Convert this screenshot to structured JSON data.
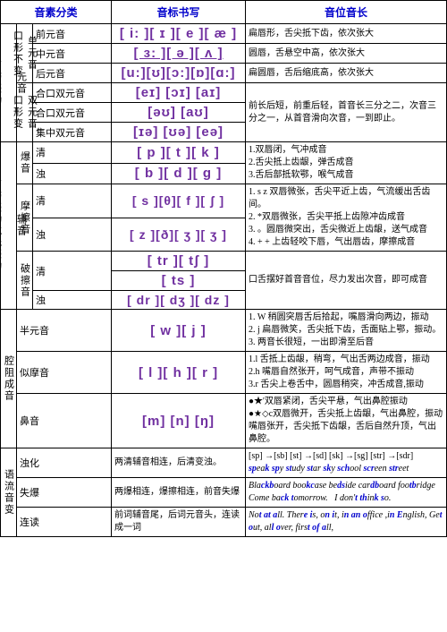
{
  "headers": {
    "h1": "音素分类",
    "h2": "音标书写",
    "h3": "音位音长"
  },
  "col1": {
    "yuan": "元音",
    "fu": "辅音",
    "qy": "腔阻成音",
    "liu": "语流音变",
    "shengdai1": "声带振动",
    "shengdai2": "声带振动或无振动"
  },
  "col2": {
    "dan": "单元音",
    "shuang": "双元音",
    "koubx": "口形不变",
    "koubian": "口形变",
    "bao": "爆音",
    "mo": "摩擦音",
    "pomo": "破擦音"
  },
  "vowels": {
    "qian": {
      "label": "前元音",
      "ipa": "[ i: ][ ɪ ][ e ][ æ ]",
      "desc": "扁唇形，舌尖抵下齿，依次张大"
    },
    "zhong": {
      "label": "中元音",
      "ipa": "[ ɜ: ][ ə  ][ ʌ ]",
      "desc": "圆唇，舌悬空中高，依次张大"
    },
    "hou": {
      "label": "后元音",
      "ipa": "[u:][ʊ][ɔ:][ɒ][ɑ:]",
      "desc": "扁圆唇，舌后缩底高，依次张大"
    },
    "hk1": {
      "label": "合口双元音",
      "ipa": "[eɪ] [ɔɪ] [aɪ]",
      "desc": "前长后短，前重后轻，首音长三分之二，次音三分之一，从首音滑向次音，一到即止。"
    },
    "hk2": {
      "label": "合口双元音",
      "ipa": "[əʊ] [aʊ]"
    },
    "jz": {
      "label": "集中双元音",
      "ipa": "[ɪə] [ʊə] [eə]"
    }
  },
  "cons": {
    "bao_q": {
      "label": "清",
      "ipa": "[ p ][ t ][ k ]",
      "desc": "1.双唇闭，气冲成音\n2.舌尖抵上齿龈，弹舌成音\n3.舌后部抵软鄂，喉气成音"
    },
    "bao_z": {
      "label": "浊",
      "ipa": "[ b ][ d ][ g ]"
    },
    "mo_q": {
      "label": "清",
      "ipa": "[ s ][θ][ f  ][ ʃ ]",
      "desc": "1. s z 双唇微张，舌尖平近上齿，气流缓出舌齿间。\n2.  *双唇微张，舌尖平抵上齿隙冲齿成音\n3. 。圆唇微突出，舌尖微近上齿龈，送气成音\n4. + + 上齿轻咬下唇，气出唇齿，摩擦成音"
    },
    "mo_z": {
      "label": "浊",
      "ipa": "[ z ][ð][ ʒ ][ ʒ ]"
    },
    "pm_q": {
      "label": "清",
      "ipa1": "[ tr   ][ tʃ   ]",
      "ipa2": "[ ts   ]",
      "desc": "口舌摆好首音音位，尽力发出次音，即可成音"
    },
    "pm_z": {
      "label": "浊",
      "ipa": "[ dr ][ dʒ ][ dz ]"
    }
  },
  "qiang": {
    "ban": {
      "label": "半元音",
      "ipa": "[ w ][ j ]",
      "desc": "1. W 稍圆突唇舌后拾起，嘴唇滑向两边，振动\n2. j 扁唇微笑，舌尖抵下齿，舌面贴上鄂，振动。\n3. 两音长很短，一出即滑至后音"
    },
    "simo": {
      "label": "似摩音",
      "ipa": "[ l ][ h ][ r ]",
      "desc": "1.l 舌抵上齿龈，稍弯，气出舌两边成音，振动\n2.h 嘴唇自然张开，呵气成音，声带不振动\n3.r 舌尖上卷舌中，圆唇稍突，冲舌成音,振动"
    },
    "bi": {
      "label": "鼻音",
      "ipa": "[m] [n] [ŋ]",
      "desc": "●★'双唇紧闭，舌尖平悬，气出鼻腔振动\n●★◇c双唇微开，舌尖抵上齿龈，气出鼻腔，振动\n嘴唇张开，舌尖抵下齿龈，舌后自然升顶，气出鼻腔。"
    }
  },
  "liu": {
    "zhuo": {
      "label": "浊化",
      "cond": "两清辅音相连，后清变浊。",
      "ex1": "[sp] →[sb]   [st] →[sd]   [sk] →[sg]   [str] →[sdr]",
      "ex2": "speak spy study star sky school screen street"
    },
    "shibao": {
      "label": "失爆",
      "cond": "两爆相连，爆擦相连，前音失爆",
      "ex": "Blackboard bookcase bedside cardboard footbridge Come back tomorrow.    I don't think so."
    },
    "lian": {
      "label": "连读",
      "cond": "前词辅音尾，后词元音头，连读成一词",
      "ex": "Not at all. There is, on it, in an office ,in English, Get out, all over, first of all,"
    }
  }
}
